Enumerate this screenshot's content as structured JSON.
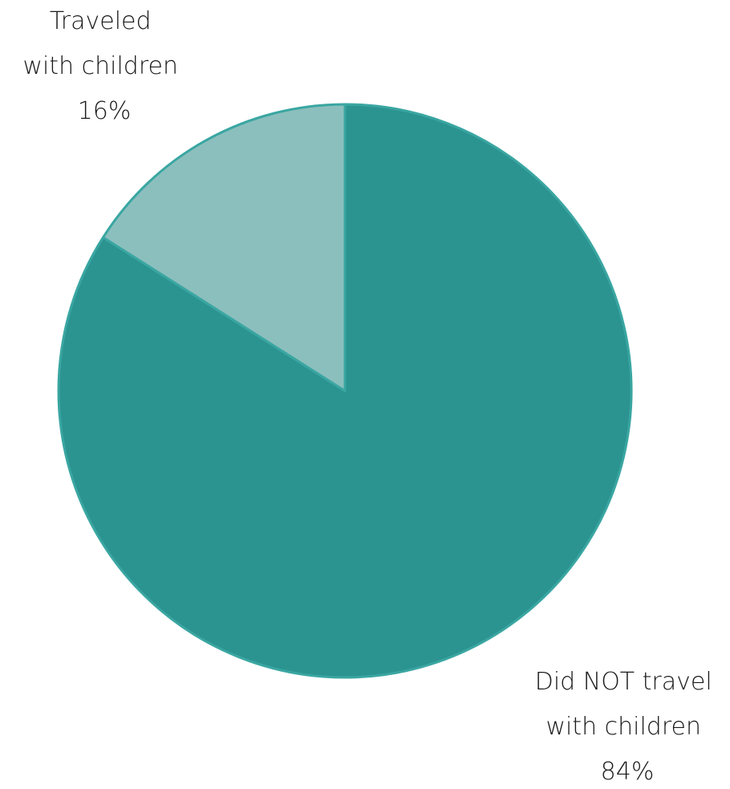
{
  "chart_data": {
    "type": "pie",
    "categories": [
      "Did NOT travel with children",
      "Traveled with children"
    ],
    "values": [
      84,
      16
    ],
    "colors": [
      "#2c9490",
      "#8bbfbd"
    ],
    "slices": [
      {
        "label_lines": [
          "Did NOT travel",
          "with children"
        ],
        "value_text": "84%"
      },
      {
        "label_lines": [
          "Traveled",
          "with children"
        ],
        "value_text": "16%"
      }
    ]
  }
}
